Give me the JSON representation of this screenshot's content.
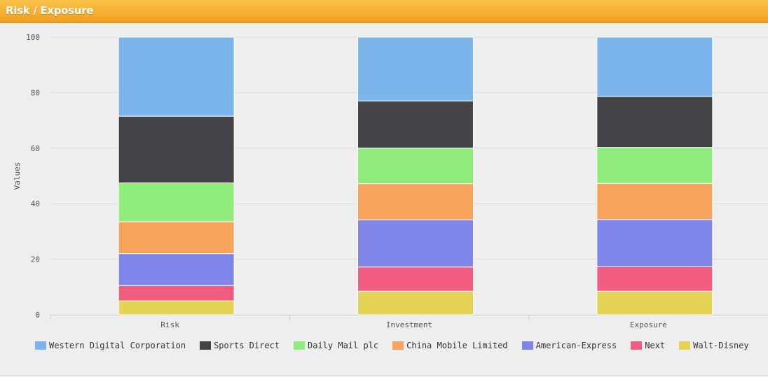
{
  "header": {
    "title": "Risk / Exposure"
  },
  "chart_data": {
    "type": "bar",
    "stacked": true,
    "title": "",
    "xlabel": "",
    "ylabel": "Values",
    "ylim": [
      0,
      100
    ],
    "yticks": [
      0,
      20,
      40,
      60,
      80,
      100
    ],
    "grid": true,
    "legend_position": "bottom",
    "categories": [
      "Risk",
      "Investment",
      "Exposure"
    ],
    "series": [
      {
        "name": "Walt-Disney",
        "color": "#e4d354",
        "values": [
          5,
          8.5,
          8.5
        ]
      },
      {
        "name": "Next",
        "color": "#f15c80",
        "values": [
          5.5,
          8.7,
          8.8
        ]
      },
      {
        "name": "American-Express",
        "color": "#8085e9",
        "values": [
          11.5,
          17,
          17
        ]
      },
      {
        "name": "China Mobile Limited",
        "color": "#f7a35c",
        "values": [
          11.5,
          13,
          13
        ]
      },
      {
        "name": "Daily Mail plc",
        "color": "#90ed7d",
        "values": [
          14,
          12.8,
          13
        ]
      },
      {
        "name": "Sports Direct",
        "color": "#434348",
        "values": [
          24,
          17,
          18.3
        ]
      },
      {
        "name": "Western Digital Corporation",
        "color": "#7cb5ec",
        "values": [
          28.5,
          23,
          21.4
        ]
      }
    ]
  },
  "legend": {
    "items": [
      {
        "label": "Western Digital Corporation",
        "color": "#7cb5ec"
      },
      {
        "label": "Sports Direct",
        "color": "#434348"
      },
      {
        "label": "Daily Mail plc",
        "color": "#90ed7d"
      },
      {
        "label": "China Mobile Limited",
        "color": "#f7a35c"
      },
      {
        "label": "American-Express",
        "color": "#8085e9"
      },
      {
        "label": "Next",
        "color": "#f15c80"
      },
      {
        "label": "Walt-Disney",
        "color": "#e4d354"
      }
    ]
  }
}
